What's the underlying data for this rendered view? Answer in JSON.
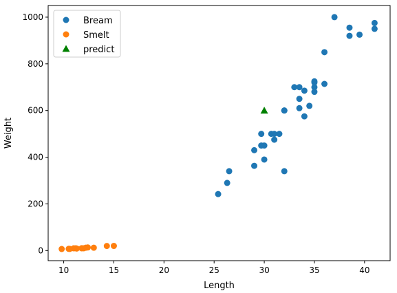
{
  "chart_data": {
    "type": "scatter",
    "xlabel": "Length",
    "ylabel": "Weight",
    "xlim": [
      8.45,
      42.55
    ],
    "ylim": [
      -43.3,
      1049.9
    ],
    "xticks": [
      10,
      15,
      20,
      25,
      30,
      35,
      40
    ],
    "yticks": [
      0,
      200,
      400,
      600,
      800,
      1000
    ],
    "grid": false,
    "legend": "upper-left",
    "series": [
      {
        "name": "Bream",
        "marker": "circle",
        "color": "#1f77b4",
        "points": [
          [
            25.4,
            242
          ],
          [
            26.3,
            290
          ],
          [
            26.5,
            340
          ],
          [
            29.0,
            363
          ],
          [
            29.0,
            430
          ],
          [
            29.7,
            450
          ],
          [
            29.7,
            500
          ],
          [
            30.0,
            390
          ],
          [
            30.0,
            450
          ],
          [
            30.7,
            500
          ],
          [
            31.0,
            475
          ],
          [
            31.0,
            500
          ],
          [
            31.5,
            500
          ],
          [
            32.0,
            340
          ],
          [
            32.0,
            600
          ],
          [
            32.0,
            600
          ],
          [
            33.0,
            700
          ],
          [
            33.5,
            700
          ],
          [
            33.5,
            610
          ],
          [
            33.5,
            650
          ],
          [
            34.0,
            575
          ],
          [
            34.0,
            685
          ],
          [
            34.5,
            620
          ],
          [
            35.0,
            680
          ],
          [
            35.0,
            700
          ],
          [
            35.0,
            725
          ],
          [
            35.0,
            720
          ],
          [
            36.0,
            714
          ],
          [
            36.0,
            850
          ],
          [
            37.0,
            1000
          ],
          [
            38.5,
            920
          ],
          [
            38.5,
            955
          ],
          [
            39.5,
            925
          ],
          [
            41.0,
            975
          ],
          [
            41.0,
            950
          ]
        ]
      },
      {
        "name": "Smelt",
        "marker": "circle",
        "color": "#ff7f0e",
        "points": [
          [
            9.8,
            6.7
          ],
          [
            10.5,
            7.5
          ],
          [
            10.6,
            7.0
          ],
          [
            11.0,
            9.7
          ],
          [
            11.2,
            9.8
          ],
          [
            11.3,
            8.7
          ],
          [
            11.8,
            10.0
          ],
          [
            11.8,
            9.9
          ],
          [
            12.0,
            9.8
          ],
          [
            12.2,
            12.2
          ],
          [
            12.4,
            13.4
          ],
          [
            13.0,
            12.2
          ],
          [
            14.3,
            19.7
          ],
          [
            15.0,
            19.9
          ]
        ]
      },
      {
        "name": "predict",
        "marker": "triangle",
        "color": "#008000",
        "points": [
          [
            30,
            600
          ]
        ]
      }
    ]
  }
}
